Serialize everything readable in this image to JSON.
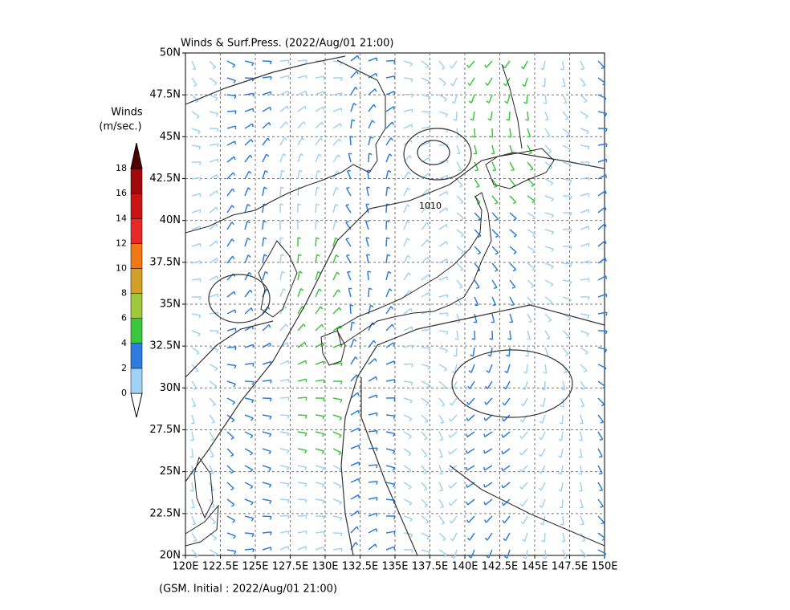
{
  "title": "Winds & Surf.Press. (2022/Aug/01 21:00)",
  "footer": "(GSM. Initial : 2022/Aug/01 21:00)",
  "colorbar": {
    "title": [
      "Winds",
      "(m/sec.)"
    ],
    "levels": [
      0,
      2,
      4,
      6,
      8,
      10,
      12,
      14,
      16,
      18
    ],
    "colors": [
      "#ffffff",
      "#a0d2f5",
      "#2d7de0",
      "#3cc83c",
      "#a0c83c",
      "#d2a028",
      "#f07814",
      "#e62828",
      "#c81414",
      "#a00a0a",
      "#500000"
    ]
  },
  "map": {
    "lon_ticks": [
      "120E",
      "122.5E",
      "125E",
      "127.5E",
      "130E",
      "132.5E",
      "135E",
      "137.5E",
      "140E",
      "142.5E",
      "145E",
      "147.5E",
      "150E"
    ],
    "lat_ticks": [
      "20N",
      "22.5N",
      "25N",
      "27.5N",
      "30N",
      "32.5N",
      "35N",
      "37.5N",
      "40N",
      "42.5N",
      "45N",
      "47.5N",
      "50N"
    ],
    "contour_label": "1010"
  }
}
